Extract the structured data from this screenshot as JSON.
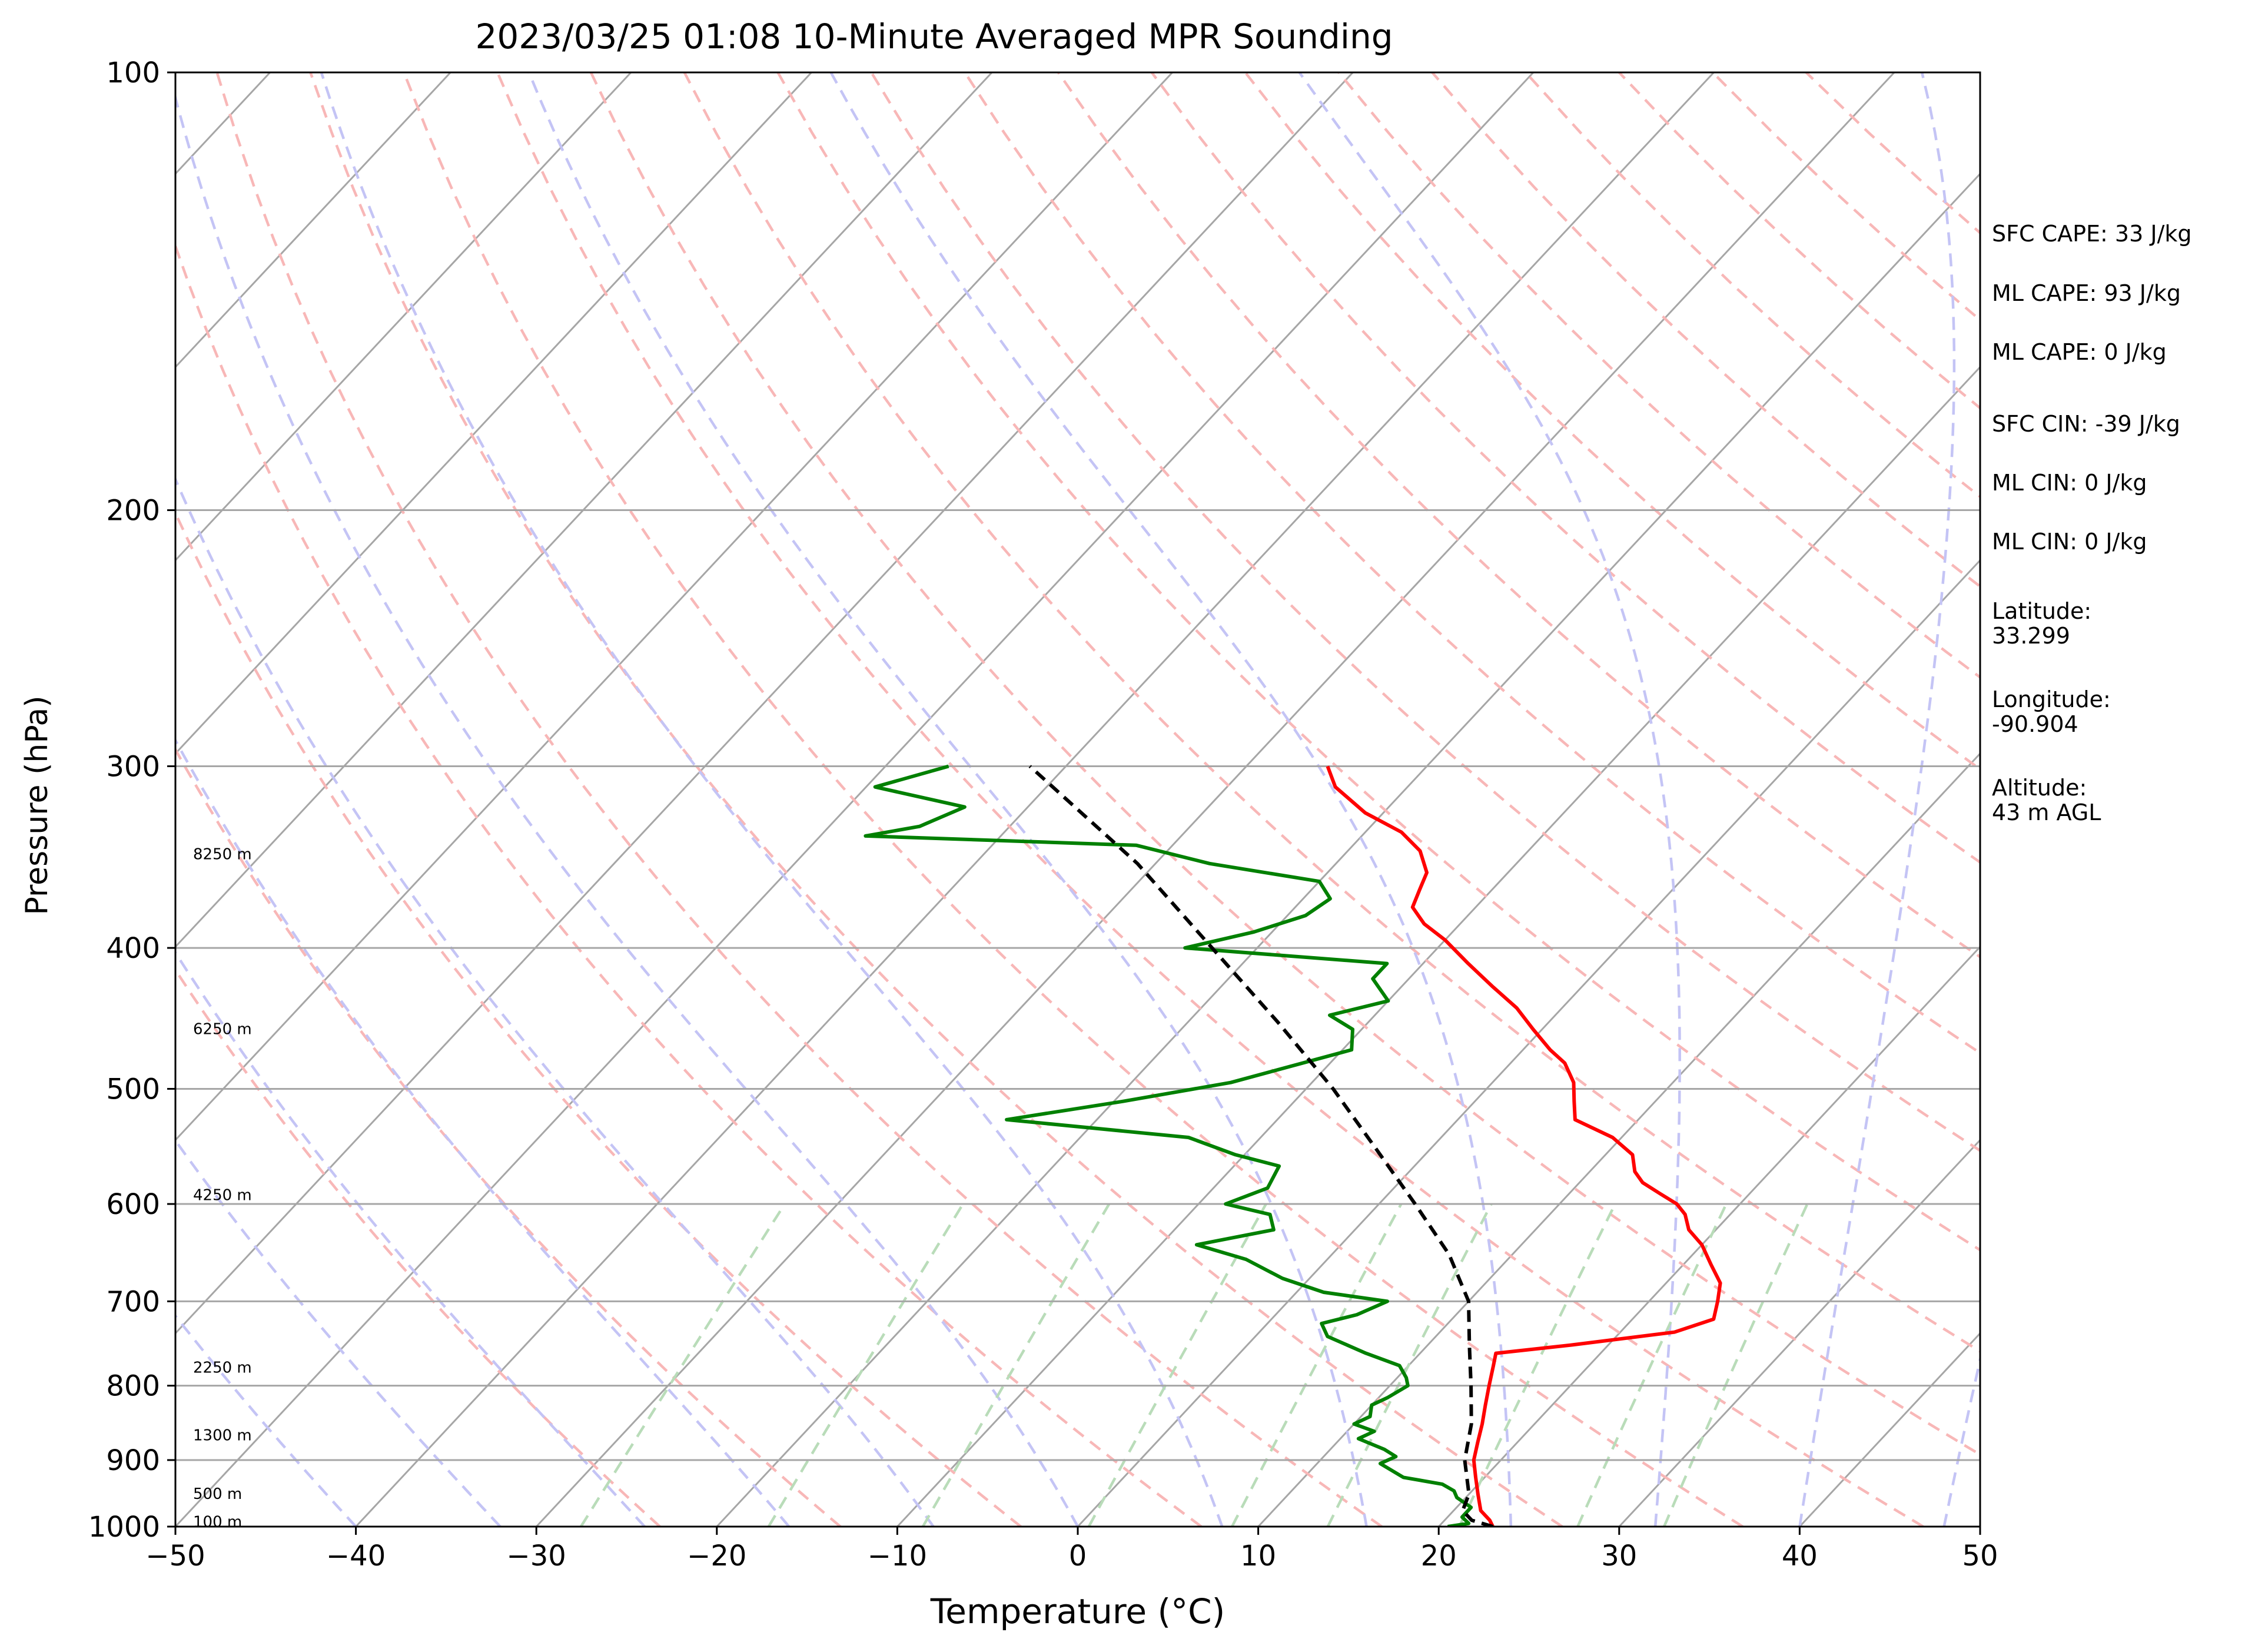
{
  "chart_data": {
    "type": "line",
    "title": "2023/03/25 01:08 10-Minute Averaged MPR Sounding",
    "xlabel": "Temperature (°C)",
    "ylabel": "Pressure (hPa)",
    "xlim": [
      -50,
      50
    ],
    "ylim": [
      1000,
      100
    ],
    "y_scale": "log",
    "skew": true,
    "x_ticks": [
      "−50",
      "−40",
      "−30",
      "−20",
      "−10",
      "0",
      "10",
      "20",
      "30",
      "40",
      "50"
    ],
    "x_tick_values": [
      -50,
      -40,
      -30,
      -20,
      -10,
      0,
      10,
      20,
      30,
      40,
      50
    ],
    "y_ticks": [
      "100",
      "200",
      "300",
      "400",
      "500",
      "600",
      "700",
      "800",
      "900",
      "1000"
    ],
    "y_tick_values": [
      100,
      200,
      300,
      400,
      500,
      600,
      700,
      800,
      900,
      1000
    ],
    "grid": true,
    "height_labels": [
      {
        "text": "8250 m",
        "p": 345
      },
      {
        "text": "6250 m",
        "p": 455
      },
      {
        "text": "4250 m",
        "p": 592
      },
      {
        "text": "2250 m",
        "p": 778
      },
      {
        "text": "1300 m",
        "p": 866
      },
      {
        "text": "500 m",
        "p": 950
      },
      {
        "text": "100 m",
        "p": 993
      }
    ],
    "annotations": [
      "SFC CAPE: 33 J/kg",
      "ML CAPE: 93 J/kg",
      "ML CAPE: 0 J/kg",
      "SFC CIN: -39 J/kg",
      "ML CIN: 0 J/kg",
      "ML CIN: 0 J/kg",
      "Latitude:\n33.299",
      "Longitude:\n-90.904",
      "Altitude:\n43 m AGL"
    ],
    "series": [
      {
        "color": "#ff0000",
        "points": [
          [
            1000,
            23.0
          ],
          [
            990,
            22.5
          ],
          [
            975,
            21.5
          ],
          [
            950,
            20.5
          ],
          [
            925,
            19.5
          ],
          [
            900,
            18.5
          ],
          [
            875,
            17.8
          ],
          [
            850,
            17.1
          ],
          [
            825,
            16.3
          ],
          [
            800,
            15.5
          ],
          [
            775,
            14.7
          ],
          [
            760,
            14.2
          ],
          [
            750,
            18.0
          ],
          [
            735,
            23.0
          ],
          [
            720,
            24.5
          ],
          [
            700,
            23.8
          ],
          [
            680,
            23.0
          ],
          [
            660,
            21.5
          ],
          [
            640,
            20.0
          ],
          [
            625,
            18.5
          ],
          [
            610,
            17.5
          ],
          [
            600,
            16.5
          ],
          [
            590,
            15.0
          ],
          [
            580,
            13.5
          ],
          [
            570,
            12.5
          ],
          [
            555,
            11.5
          ],
          [
            540,
            9.5
          ],
          [
            525,
            6.5
          ],
          [
            510,
            5.5
          ],
          [
            495,
            4.5
          ],
          [
            480,
            3.0
          ],
          [
            470,
            1.5
          ],
          [
            455,
            -0.5
          ],
          [
            440,
            -2.5
          ],
          [
            425,
            -5.0
          ],
          [
            410,
            -7.5
          ],
          [
            395,
            -10.0
          ],
          [
            385,
            -12.0
          ],
          [
            375,
            -13.5
          ],
          [
            365,
            -14.0
          ],
          [
            355,
            -14.5
          ],
          [
            343,
            -16.0
          ],
          [
            333,
            -18.0
          ],
          [
            323,
            -21.0
          ],
          [
            310,
            -24.0
          ],
          [
            300,
            -25.5
          ]
        ]
      },
      {
        "color": "#008000",
        "points": [
          [
            1000,
            20.5
          ],
          [
            995,
            21.5
          ],
          [
            985,
            20.8
          ],
          [
            970,
            20.8
          ],
          [
            955,
            19.5
          ],
          [
            945,
            19.0
          ],
          [
            935,
            18.0
          ],
          [
            925,
            15.5
          ],
          [
            915,
            14.5
          ],
          [
            905,
            13.5
          ],
          [
            895,
            14.0
          ],
          [
            885,
            13.0
          ],
          [
            870,
            11.0
          ],
          [
            860,
            11.5
          ],
          [
            850,
            10.0
          ],
          [
            840,
            10.5
          ],
          [
            825,
            10.0
          ],
          [
            815,
            10.5
          ],
          [
            800,
            11.0
          ],
          [
            790,
            10.5
          ],
          [
            775,
            9.5
          ],
          [
            760,
            7.0
          ],
          [
            740,
            4.0
          ],
          [
            725,
            3.0
          ],
          [
            715,
            4.5
          ],
          [
            700,
            5.5
          ],
          [
            690,
            1.5
          ],
          [
            675,
            -1.5
          ],
          [
            655,
            -4.5
          ],
          [
            640,
            -8.0
          ],
          [
            625,
            -4.5
          ],
          [
            610,
            -5.5
          ],
          [
            600,
            -8.5
          ],
          [
            585,
            -7.0
          ],
          [
            565,
            -7.5
          ],
          [
            555,
            -10.5
          ],
          [
            540,
            -14.0
          ],
          [
            525,
            -25.0
          ],
          [
            510,
            -19.5
          ],
          [
            495,
            -14.5
          ],
          [
            470,
            -9.5
          ],
          [
            455,
            -10.5
          ],
          [
            445,
            -12.5
          ],
          [
            435,
            -10.0
          ],
          [
            420,
            -12.0
          ],
          [
            410,
            -12.0
          ],
          [
            400,
            -24.0
          ],
          [
            390,
            -21.0
          ],
          [
            380,
            -19.0
          ],
          [
            370,
            -18.5
          ],
          [
            360,
            -20.0
          ],
          [
            350,
            -27.0
          ],
          [
            340,
            -32.0
          ],
          [
            335,
            -47.5
          ],
          [
            330,
            -45.0
          ],
          [
            320,
            -43.5
          ],
          [
            310,
            -49.5
          ],
          [
            300,
            -46.5
          ]
        ]
      },
      {
        "color": "#000000",
        "dashed": true,
        "points": [
          [
            1000,
            23.0
          ],
          [
            990,
            21.5
          ],
          [
            975,
            20.5
          ],
          [
            950,
            20.0
          ],
          [
            900,
            18.0
          ],
          [
            850,
            16.5
          ],
          [
            800,
            14.5
          ],
          [
            750,
            12.3
          ],
          [
            700,
            10.0
          ],
          [
            650,
            6.5
          ],
          [
            600,
            2.0
          ],
          [
            550,
            -3.0
          ],
          [
            500,
            -8.5
          ],
          [
            450,
            -15.0
          ],
          [
            400,
            -22.5
          ],
          [
            350,
            -31.0
          ],
          [
            300,
            -42.0
          ]
        ]
      }
    ]
  }
}
